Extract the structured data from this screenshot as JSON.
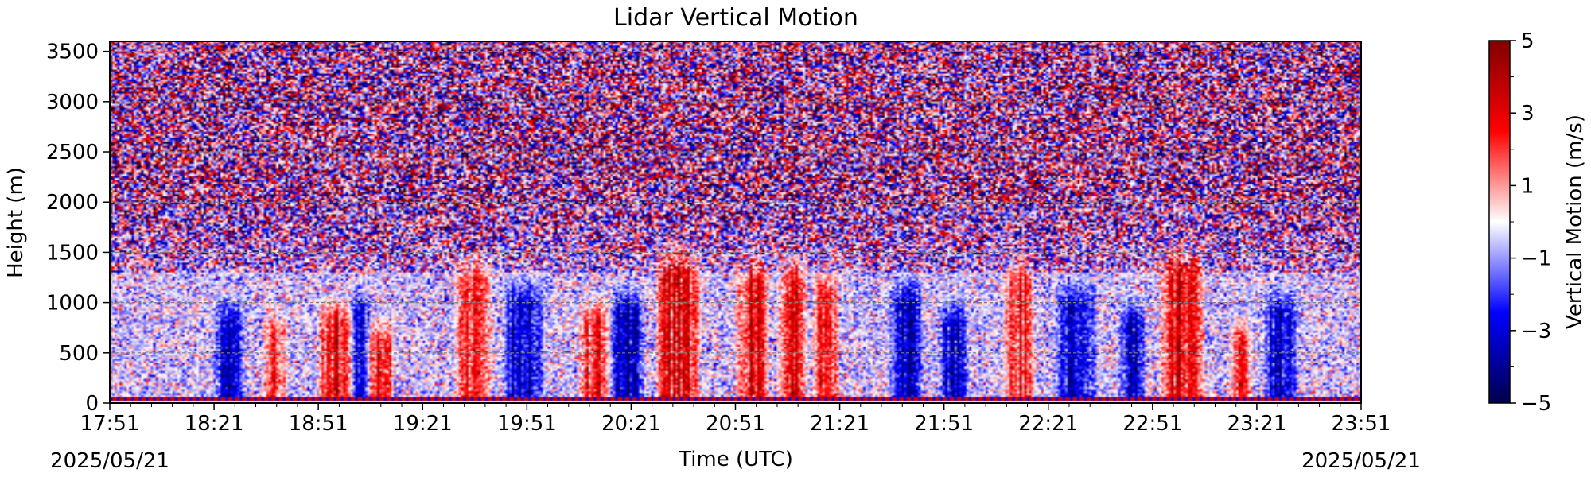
{
  "chart_data": {
    "type": "heatmap",
    "title": "Lidar Vertical Motion",
    "xlabel": "Time (UTC)",
    "ylabel": "Height (m)",
    "colorbar_label": "Vertical Motion (m/s)",
    "x_start_date": "2025/05/21",
    "x_end_date": "2025/05/21",
    "x_ticks": [
      "17:51",
      "18:21",
      "18:51",
      "19:21",
      "19:51",
      "20:21",
      "20:51",
      "21:21",
      "21:51",
      "22:21",
      "22:51",
      "23:21",
      "23:51"
    ],
    "xlim": [
      "17:51",
      "23:51"
    ],
    "y_ticks": [
      0,
      500,
      1000,
      1500,
      2000,
      2500,
      3000,
      3500
    ],
    "ylim": [
      0,
      3600
    ],
    "colorbar_ticks": [
      5,
      3,
      1,
      -1,
      -3,
      -5
    ],
    "colorbar_tick_labels": [
      "5",
      "3",
      "1",
      "−1",
      "−3",
      "−5"
    ],
    "clim": [
      -5,
      5
    ],
    "colormap": "seismic",
    "grid": "horizontal dashed",
    "updraft_episodes_m_s": [
      {
        "start": "18:36",
        "end": "18:41",
        "top_m": 1000,
        "peak": 2.5
      },
      {
        "start": "18:52",
        "end": "19:00",
        "top_m": 1100,
        "peak": 3.5
      },
      {
        "start": "19:06",
        "end": "19:12",
        "top_m": 900,
        "peak": 3
      },
      {
        "start": "19:31",
        "end": "19:40",
        "top_m": 1500,
        "peak": 3
      },
      {
        "start": "20:07",
        "end": "20:14",
        "top_m": 1100,
        "peak": 3
      },
      {
        "start": "20:29",
        "end": "20:40",
        "top_m": 1600,
        "peak": 4
      },
      {
        "start": "20:52",
        "end": "21:00",
        "top_m": 1500,
        "peak": 3.5
      },
      {
        "start": "21:04",
        "end": "21:11",
        "top_m": 1500,
        "peak": 3.5
      },
      {
        "start": "21:14",
        "end": "21:20",
        "top_m": 1400,
        "peak": 3
      },
      {
        "start": "22:09",
        "end": "22:16",
        "top_m": 1500,
        "peak": 3
      },
      {
        "start": "22:54",
        "end": "23:05",
        "top_m": 1600,
        "peak": 3.5
      },
      {
        "start": "23:14",
        "end": "23:19",
        "top_m": 900,
        "peak": 2.5
      }
    ],
    "downdraft_episodes_m_s": [
      {
        "start": "18:22",
        "end": "18:29",
        "top_m": 1100,
        "peak": -3
      },
      {
        "start": "19:01",
        "end": "19:05",
        "top_m": 1200,
        "peak": -2.5
      },
      {
        "start": "19:45",
        "end": "19:55",
        "top_m": 1300,
        "peak": -3.5
      },
      {
        "start": "20:16",
        "end": "20:24",
        "top_m": 1200,
        "peak": -3.5
      },
      {
        "start": "21:36",
        "end": "21:44",
        "top_m": 1300,
        "peak": -3
      },
      {
        "start": "21:51",
        "end": "21:57",
        "top_m": 1100,
        "peak": -3.5
      },
      {
        "start": "22:24",
        "end": "22:34",
        "top_m": 1300,
        "peak": -3
      },
      {
        "start": "22:42",
        "end": "22:48",
        "top_m": 1100,
        "peak": -3
      },
      {
        "start": "23:24",
        "end": "23:32",
        "top_m": 1200,
        "peak": -3
      }
    ],
    "near_ground_band": {
      "height_m": 50,
      "description": "red-blue stripe at lowest range gate"
    }
  }
}
